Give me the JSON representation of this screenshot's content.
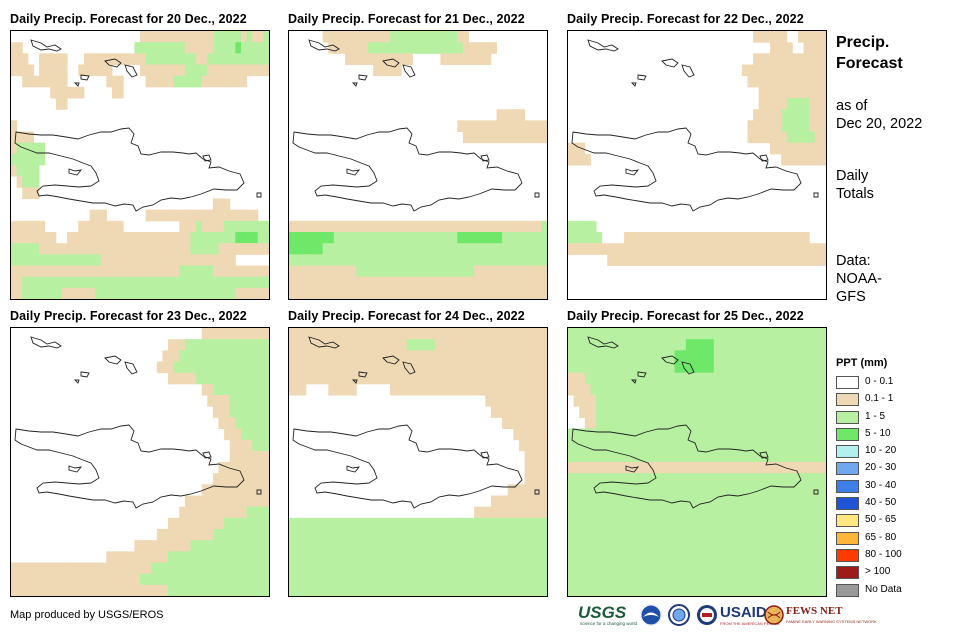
{
  "panels": [
    {
      "title": "Daily Precip. Forecast for 20 Dec., 2022"
    },
    {
      "title": "Daily Precip. Forecast for 21 Dec., 2022"
    },
    {
      "title": "Daily Precip. Forecast for 22 Dec., 2022"
    },
    {
      "title": "Daily Precip. Forecast for 23 Dec., 2022"
    },
    {
      "title": "Daily Precip. Forecast for 24 Dec., 2022"
    },
    {
      "title": "Daily Precip. Forecast for 25 Dec., 2022"
    }
  ],
  "side": {
    "title_line1": "Precip.",
    "title_line2": "Forecast",
    "asof_line1": "as of",
    "asof_line2": "Dec 20, 2022",
    "totals_line1": "Daily",
    "totals_line2": "Totals",
    "data_line1": "Data:",
    "data_line2": "NOAA-",
    "data_line3": "GFS"
  },
  "legend": {
    "title": "PPT (mm)",
    "items": [
      {
        "label": "0 - 0.1",
        "color": "#ffffff"
      },
      {
        "label": "0.1 - 1",
        "color": "#efd9b4"
      },
      {
        "label": "1 - 5",
        "color": "#b7f0a0"
      },
      {
        "label": "5 - 10",
        "color": "#6fe86a"
      },
      {
        "label": "10 - 20",
        "color": "#b4efef"
      },
      {
        "label": "20 - 30",
        "color": "#6fa8ef"
      },
      {
        "label": "30 - 40",
        "color": "#3d7fe8"
      },
      {
        "label": "40 - 50",
        "color": "#1f55d6"
      },
      {
        "label": "50 - 65",
        "color": "#ffe680"
      },
      {
        "label": "65 - 80",
        "color": "#ffb43c"
      },
      {
        "label": "80 - 100",
        "color": "#ff3c00"
      },
      {
        "label": "> 100",
        "color": "#a01a1a"
      },
      {
        "label": "No Data",
        "color": "#999999"
      }
    ]
  },
  "credit": "Map produced by USGS/EROS",
  "logos": {
    "usgs": "USGS",
    "usgs_tagline": "science for a changing world",
    "usaid": "USAID",
    "usaid_tagline": "FROM THE AMERICAN PEOPLE",
    "fews": "FEWS NET",
    "fews_tagline": "FAMINE EARLY WARNING SYSTEMS NETWORK"
  },
  "grids": [
    [
      "0000000000000000000000011111111111112222212112",
      "1100000000000000000000222222222111112222322222",
      "1110011111000111111111112222222221122222222222",
      "1111011111001111110000011111111222211111111111",
      "0011111111000000011100001111122222111111110000",
      "0000000111111000001100000000000000000000000000",
      "0000000011000000000000000000000000000000000000",
      "0000000000000000000000000000000000000000000000",
      "1000000000000000000000000000000000000000000000",
      "1111000000000000000000000000000000000000000000",
      "1222220000000000000000000000000000000000000000",
      "2222220000000000000000000000000000000000000000",
      "1222200000000000000000000000000000000000000000",
      "0122200000000000000000000000000000000000000000",
      "0011100000000000000000000000000000000000000000",
      "0000000000000000000000000000000000001110000000",
      "0000000000000011100000001111111111111111111100",
      "1111110000001111111100000000001112111122222222",
      "1111111100111111111111111111111122222222333322",
      "2222211111111111111111111111111122222111111111",
      "2222222222222222111111111111111111111111000000",
      "1111111111111111111111111111112222221111111111",
      "1122222222222222222222222222222222222222222222",
      "1122222221111112222222222222222222222222111111"
    ],
    [
      "0000001111111111112222222222221100000000000000",
      "0000000111111122222222222222222111111000000000",
      "0000000000111111111111000001111111110000000000",
      "0000000000000001111100000000000000000000000000",
      "0000000000000000000000000000000000000000000000",
      "0000000000000000000000000000000000000000000000",
      "0000000000000000000000000000000000000000000000",
      "0000000000000000000000000000000000000111110000",
      "0000000000000000000000000000001111111111111111",
      "0000000000000000000000000000000111111111111111",
      "0000000000000000000000000000000000000000000000",
      "0000000000000000000000000000000000000000000000",
      "0000000000000000000000000000000000000000000000",
      "0000000000000000000000000000000000000000000000",
      "0000000000000000000000000000000000000000000000",
      "0000000000000000000000000000000000000000000000",
      "0000000000000000000000000000000000000000000000",
      "1111111111111111111111111111111111111111111112",
      "3333333322222222222222222222223333333322222222",
      "3333332222222222222222222222222222222222222222",
      "2222222222222222222222222222222222222222222222",
      "1111111111112222222222222222222221111111111111",
      "1111111111111111111111111111111111111111111111",
      "1111111111111111111111111111111111111111111111"
    ],
    [
      "0000000000000000000000000000000001111110011111",
      "0000000000000000000000000000000000001111001111",
      "0000000000000000000000000000000001111111111111",
      "0000000000000000000000000000000111111111111111",
      "0000000000000000000000000000000011111111111111",
      "0000000000000000000000000000000000111111111111",
      "0000000000000000000000000000000000111112222111",
      "0000000000000000000000000000000001111122222111",
      "0000000000000000000000000000000011111122222111",
      "0000000000000000000000000000000011111112222211",
      "1110000000000000000000000000000000001111111111",
      "1111000000000000000000000000000000000011111111",
      "0000000000000000000000000000000000000000000000",
      "0000000000000000000000000000000000000000000000",
      "0000000000000000000000000000000000000000000000",
      "0000000000000000000000000000000000000000000000",
      "0000000000000000000000000000000000000000000000",
      "2222200000000000000000000000000000000000000000",
      "2222220000111111111111111111111111111111111000",
      "1111111111111111111111111111111111111111111111",
      "0000000111111111111111111111111111111111111111",
      "0000000000000000000000000000000000000000000000",
      "0000000000000000000000000000000000000000000000",
      "0000000000000000000000000000000000000000000000"
    ],
    [
      "0000000000000000000000000000000000111111111111",
      "0000000000000000000000000000111222222222222222",
      "0000000000000000000000000001112222222222222222",
      "0000000000000000000000000011122222222222222222",
      "0000000000000000000000000000111112222222222222",
      "0000000000000000000000000000000000112222222222",
      "0000000000000000000000000000000000011112222222",
      "0000000000000000000000000000000000001112222222",
      "0000000000000000000000000000000000000111222222",
      "0000000000000000000000000000000000000011122222",
      "0000000000000000000000000000000000000001111222",
      "0000000000000000000000000000000000000001111111",
      "0000000000000000000000000000000000000111111111",
      "0000000000000000000000000000000000001111111111",
      "0000000000000000000000000000000000111111111111",
      "0000000000000000000000000000000111111111111111",
      "0000000000000000000000000000001111111111112222",
      "0000000000000000000000000000111111111122222222",
      "0000000000000000000000000011111111112222222222",
      "0000000000000000000000111111111122222222222222",
      "0000000000000000011111111111222222222222222222",
      "1111111111111111111111111222222222222222222222",
      "1111111111111111111111122222222222222222222222",
      "1111111111111111111111111111222222222222222222"
    ],
    [
      "1111111111111111111111111111111111111111111111",
      "1111111111111111111112222211111111111111111111",
      "1111111111111111111111111111111111111111111111",
      "1111111111111111111111111111111111111111111111",
      "1111111111111111111111111111111111111111111111",
      "1110000111110000001111111111111111111111111111",
      "0000000000000000000000000000000000011111111111",
      "0000000000000000000000000000000000001111111111",
      "0000000000000000000000000000000000000011111111",
      "0000000000000000000000000000000000000000111111",
      "0000000000000000000000000000000000000000011111",
      "0000000000000000000000000000000000000000001111",
      "0000000000000000000000000000000000000000001111",
      "0000000000000000000000000000000000000000001111",
      "0000000000000000000000000000000000000001111111",
      "0000000000000000000000000000000000001111111111",
      "0000000000000000000000000000000001111111111111",
      "2222222222222222222222222222222222222222222222",
      "2222222222222222222222222222222222222222222222",
      "2222222222222222222222222222222222222222222222",
      "2222222222222222222222222222222222222222222222",
      "2222222222222222222222222222222222222222222222",
      "2222222222222222222222222222222222222222222222",
      "2222222222222222222222222222222222222222222222"
    ],
    [
      "2222222222222222222222222222222222222222222222",
      "2222222222222222222223333322222222222222222222",
      "2222222222222222222333333322222222222222222222",
      "2222222222222222222333333322222222222222222222",
      "1112222222222222222222222222222222222222222222",
      "1111222222222222222222222222222222222222222222",
      "0111122222222222222222222222222222222222222222",
      "0011122222222222222222222222222222222222222222",
      "0001122222222222222222222222222222222222222222",
      "2222222222222222222222222222222222222222222222",
      "2222222222222222222222222222222222222222222222",
      "2222222222222222222222222222222222222222222222",
      "1111111111111111111111111111111111111111111111",
      "2222222222222222222222222222222222222222222222",
      "2222222222222222222222222222222222222222222222",
      "2222222222222222222222222222222222222222222222",
      "2222222222222222222222222222222222222222222222",
      "2222222222222222222222222222222222222222222222",
      "2222222222222222222222222222222222222222222222",
      "2222222222222222222222222222222222222222222222",
      "2222222222222222222222222222222222222222222222",
      "2222222222222222222222222222222222222222222222",
      "2222222222222222222222222222222222222222222222",
      "2222222222222222222222222222222222222222222222"
    ]
  ]
}
